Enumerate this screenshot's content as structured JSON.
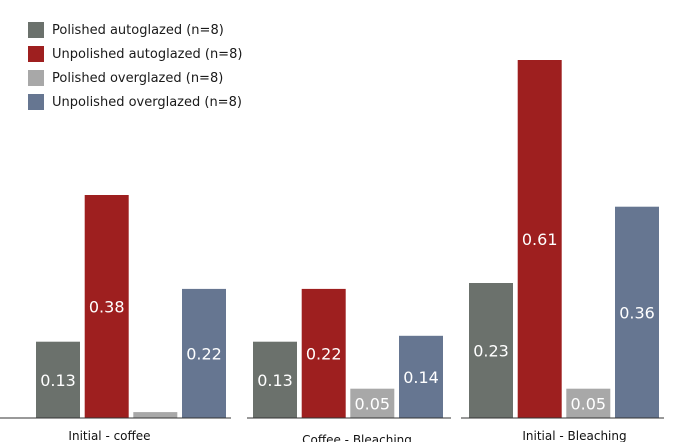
{
  "chart_data": {
    "type": "bar",
    "categories": [
      "Initial - coffee",
      "Coffee - Bleaching",
      "Initial - Bleaching"
    ],
    "series": [
      {
        "name": "Polished autoglazed (n=8)",
        "values": [
          0.13,
          0.13,
          0.23
        ],
        "labels": [
          "0.13",
          "0.13",
          "0.23"
        ],
        "color": "#6b716c"
      },
      {
        "name": "Unpolished autoglazed (n=8)",
        "values": [
          0.38,
          0.22,
          0.61
        ],
        "labels": [
          "0.38",
          "0.22",
          "0.61"
        ],
        "color": "#9e1f1f"
      },
      {
        "name": "Polished overglazed (n=8)",
        "values": [
          0.01,
          0.05,
          0.05
        ],
        "labels": [
          "",
          "0.05",
          "0.05"
        ],
        "color": "#a8a8a8"
      },
      {
        "name": "Unpolished overglazed (n=8)",
        "values": [
          0.22,
          0.14,
          0.36
        ],
        "labels": [
          "0.22",
          "0.14",
          "0.36"
        ],
        "color": "#667691"
      }
    ],
    "legend_position": "top-left",
    "grid": false,
    "ylim": [
      0,
      0.63
    ]
  }
}
